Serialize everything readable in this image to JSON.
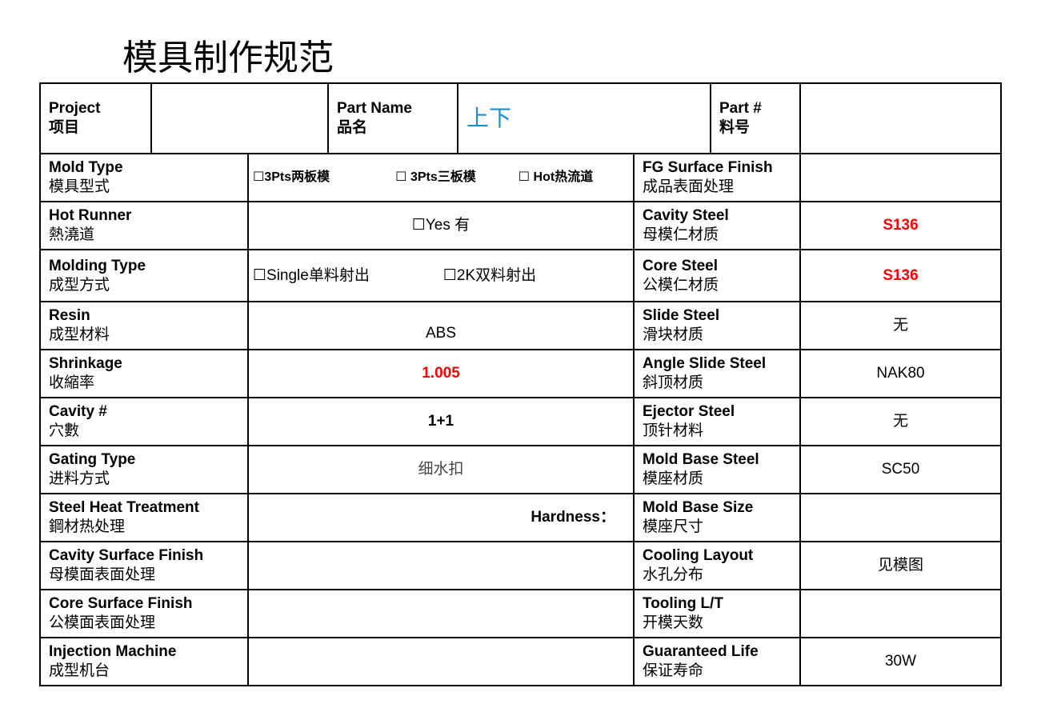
{
  "title": "模具制作规范",
  "header": {
    "project": {
      "en": "Project",
      "cn": "项目",
      "value": ""
    },
    "part_name": {
      "en": "Part Name",
      "cn": "品名",
      "value": "上下"
    },
    "part_no": {
      "en": "Part #",
      "cn": "料号",
      "value": ""
    }
  },
  "rows": [
    {
      "l_en": "Mold Type",
      "l_cn": "模具型式",
      "options": [
        "☐3Pts两板模",
        "☐ 3Pts三板模",
        "☐ Hot热流道"
      ],
      "r_en": "FG Surface Finish",
      "r_cn": "成品表面处理",
      "r_val": ""
    },
    {
      "l_en": "Hot Runner",
      "l_cn": "熱澆道",
      "value": "☐Yes 有",
      "r_en": "Cavity Steel",
      "r_cn": "母模仁材质",
      "r_val": "S136"
    },
    {
      "l_en": "Molding Type",
      "l_cn": "成型方式",
      "options": [
        "☐Single单料射出",
        "☐2K双料射出"
      ],
      "r_en": "Core Steel",
      "r_cn": "公模仁材质",
      "r_val": "S136"
    },
    {
      "l_en": "Resin",
      "l_cn": "成型材料",
      "value": "ABS",
      "r_en": "Slide Steel",
      "r_cn": "滑块材质",
      "r_val": "无"
    },
    {
      "l_en": "Shrinkage",
      "l_cn": "收縮率",
      "value": "1.005",
      "r_en": "Angle Slide Steel",
      "r_cn": "斜顶材质",
      "r_val": "NAK80"
    },
    {
      "l_en": "Cavity #",
      "l_cn": "穴數",
      "value": "1+1",
      "r_en": "Ejector Steel",
      "r_cn": "顶针材料",
      "r_val": "无"
    },
    {
      "l_en": "Gating Type",
      "l_cn": "进料方式",
      "value": "细水扣",
      "r_en": "Mold Base Steel",
      "r_cn": "模座材质",
      "r_val": "SC50"
    },
    {
      "l_en": "Steel Heat Treatment",
      "l_cn": "鋼材热处理",
      "value": "Hardness：",
      "r_en": "Mold Base Size",
      "r_cn": "模座尺寸",
      "r_val": ""
    },
    {
      "l_en": "Cavity Surface Finish",
      "l_cn": "母模面表面处理",
      "value": "",
      "r_en": "Cooling Layout",
      "r_cn": "水孔分布",
      "r_val": "见模图"
    },
    {
      "l_en": "Core Surface Finish",
      "l_cn": "公模面表面处理",
      "value": "",
      "r_en": "Tooling L/T",
      "r_cn": "开模天数",
      "r_val": ""
    },
    {
      "l_en": "Injection Machine",
      "l_cn": "成型机台",
      "value": "",
      "r_en": "Guaranteed Life",
      "r_cn": "保证寿命",
      "r_val": "30W"
    }
  ],
  "colors": {
    "red": "#ff0000",
    "blue": "#1e8bd0"
  }
}
